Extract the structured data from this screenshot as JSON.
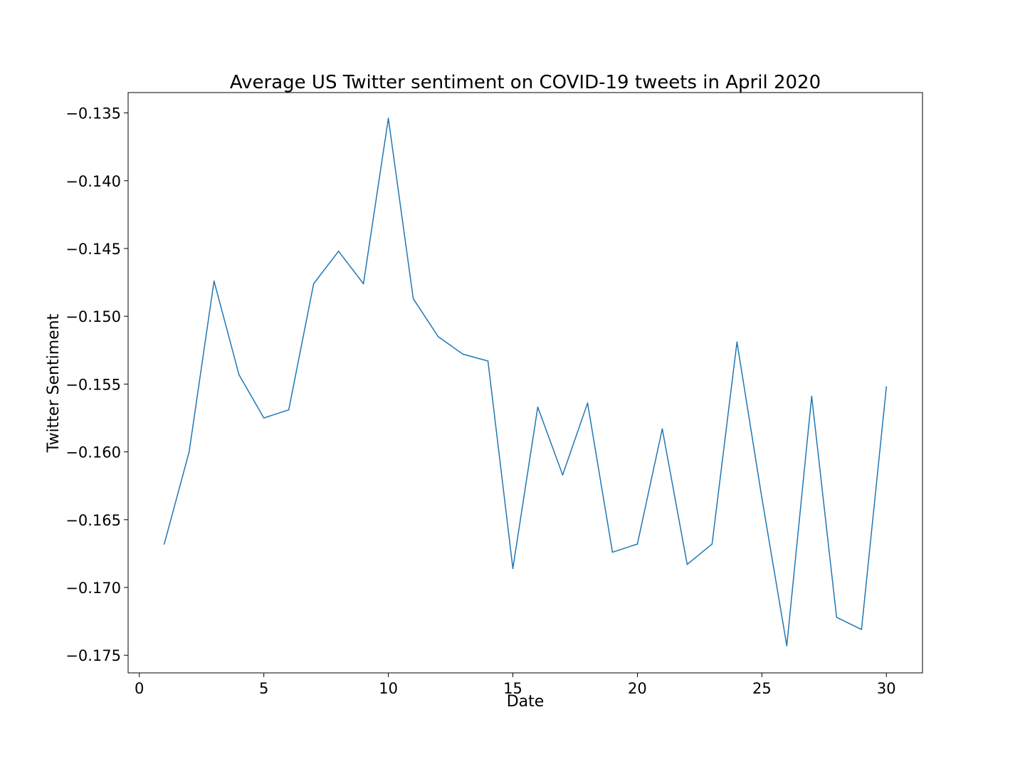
{
  "chart_data": {
    "type": "line",
    "title": "Average US Twitter sentiment on COVID-19 tweets in April 2020",
    "xlabel": "Date",
    "ylabel": "Twitter Sentiment",
    "xlim": [
      -0.45,
      31.45
    ],
    "ylim": [
      -0.1763,
      -0.1335
    ],
    "grid": false,
    "legend": "none",
    "line_color": "#1f77b4",
    "x_ticks": [
      0,
      5,
      10,
      15,
      20,
      25,
      30
    ],
    "x_tick_labels": [
      "0",
      "5",
      "10",
      "15",
      "20",
      "25",
      "30"
    ],
    "y_ticks": [
      -0.135,
      -0.14,
      -0.145,
      -0.15,
      -0.155,
      -0.16,
      -0.165,
      -0.17,
      -0.175
    ],
    "y_tick_labels": [
      "−0.135",
      "−0.140",
      "−0.145",
      "−0.150",
      "−0.155",
      "−0.160",
      "−0.165",
      "−0.170",
      "−0.175"
    ],
    "series": [
      {
        "x": [
          1,
          2,
          3,
          4,
          5,
          6,
          7,
          8,
          9,
          10,
          11,
          12,
          13,
          14,
          15,
          16,
          17,
          18,
          19,
          20,
          21,
          22,
          23,
          24,
          25,
          26,
          27,
          28,
          29,
          30
        ],
        "values": [
          -0.1668,
          -0.16,
          -0.1474,
          -0.1543,
          -0.1575,
          -0.1569,
          -0.1476,
          -0.1452,
          -0.1476,
          -0.1354,
          -0.1487,
          -0.1515,
          -0.1528,
          -0.1533,
          -0.1686,
          -0.1567,
          -0.1617,
          -0.1564,
          -0.1674,
          -0.1668,
          -0.1583,
          -0.1683,
          -0.1668,
          -0.1519,
          -0.1634,
          -0.1743,
          -0.1559,
          -0.1722,
          -0.1731,
          -0.1552
        ]
      }
    ]
  }
}
